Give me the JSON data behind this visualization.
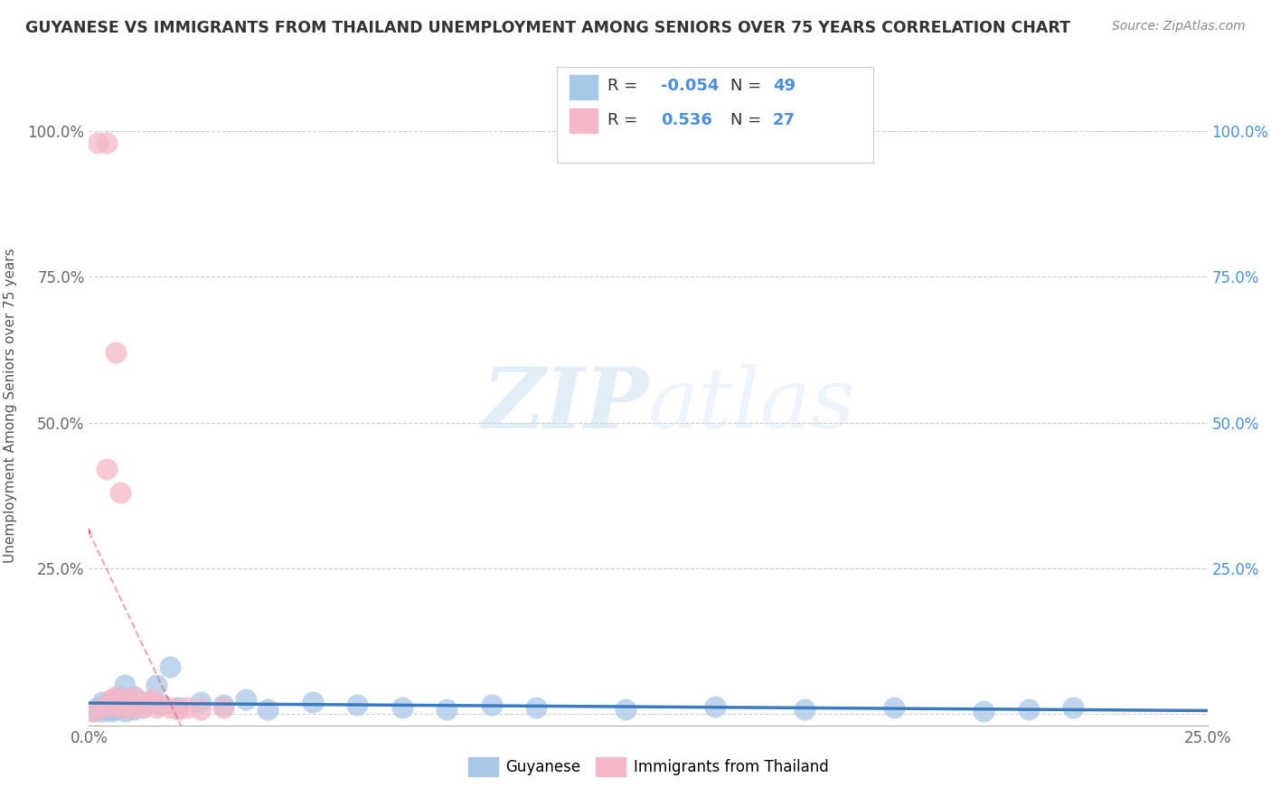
{
  "title": "GUYANESE VS IMMIGRANTS FROM THAILAND UNEMPLOYMENT AMONG SENIORS OVER 75 YEARS CORRELATION CHART",
  "source": "Source: ZipAtlas.com",
  "ylabel": "Unemployment Among Seniors over 75 years",
  "xlim": [
    0,
    0.25
  ],
  "ylim": [
    -0.02,
    1.08
  ],
  "xticks": [
    0.0,
    0.25
  ],
  "yticks": [
    0.0,
    0.25,
    0.5,
    0.75,
    1.0
  ],
  "xtick_labels": [
    "0.0%",
    "25.0%"
  ],
  "ytick_labels_left": [
    "",
    "25.0%",
    "50.0%",
    "75.0%",
    "100.0%"
  ],
  "ytick_labels_right": [
    "",
    "25.0%",
    "50.0%",
    "75.0%",
    "100.0%"
  ],
  "guyanese_color": "#a8c8e8",
  "thailand_color": "#f4b8c8",
  "guyanese_line_color": "#3a7abf",
  "thailand_line_color": "#e05070",
  "legend_r_guyanese": "-0.054",
  "legend_n_guyanese": "49",
  "legend_r_thailand": "0.536",
  "legend_n_thailand": "27",
  "watermark_zip": "ZIP",
  "watermark_atlas": "atlas",
  "background_color": "#ffffff",
  "guyanese_x": [
    0.001,
    0.002,
    0.002,
    0.003,
    0.003,
    0.003,
    0.004,
    0.004,
    0.005,
    0.005,
    0.005,
    0.006,
    0.006,
    0.006,
    0.007,
    0.007,
    0.007,
    0.008,
    0.008,
    0.008,
    0.009,
    0.009,
    0.01,
    0.01,
    0.01,
    0.011,
    0.012,
    0.013,
    0.015,
    0.016,
    0.018,
    0.02,
    0.025,
    0.03,
    0.035,
    0.04,
    0.05,
    0.06,
    0.07,
    0.08,
    0.09,
    0.1,
    0.12,
    0.14,
    0.16,
    0.18,
    0.2,
    0.21,
    0.22
  ],
  "guyanese_y": [
    0.005,
    0.008,
    0.01,
    0.005,
    0.012,
    0.02,
    0.008,
    0.015,
    0.005,
    0.01,
    0.02,
    0.008,
    0.015,
    0.025,
    0.01,
    0.02,
    0.03,
    0.005,
    0.015,
    0.05,
    0.01,
    0.025,
    0.008,
    0.015,
    0.03,
    0.02,
    0.01,
    0.02,
    0.05,
    0.015,
    0.08,
    0.01,
    0.02,
    0.015,
    0.025,
    0.008,
    0.02,
    0.015,
    0.01,
    0.008,
    0.015,
    0.01,
    0.008,
    0.012,
    0.008,
    0.01,
    0.005,
    0.008,
    0.01
  ],
  "thailand_x": [
    0.001,
    0.002,
    0.003,
    0.004,
    0.004,
    0.005,
    0.005,
    0.006,
    0.006,
    0.007,
    0.007,
    0.008,
    0.008,
    0.009,
    0.01,
    0.01,
    0.011,
    0.012,
    0.013,
    0.014,
    0.015,
    0.016,
    0.018,
    0.02,
    0.022,
    0.025,
    0.03
  ],
  "thailand_y": [
    0.005,
    0.98,
    0.01,
    0.98,
    0.42,
    0.025,
    0.015,
    0.03,
    0.62,
    0.01,
    0.38,
    0.015,
    0.025,
    0.01,
    0.02,
    0.03,
    0.015,
    0.01,
    0.02,
    0.025,
    0.01,
    0.015,
    0.01,
    0.008,
    0.01,
    0.008,
    0.01
  ]
}
